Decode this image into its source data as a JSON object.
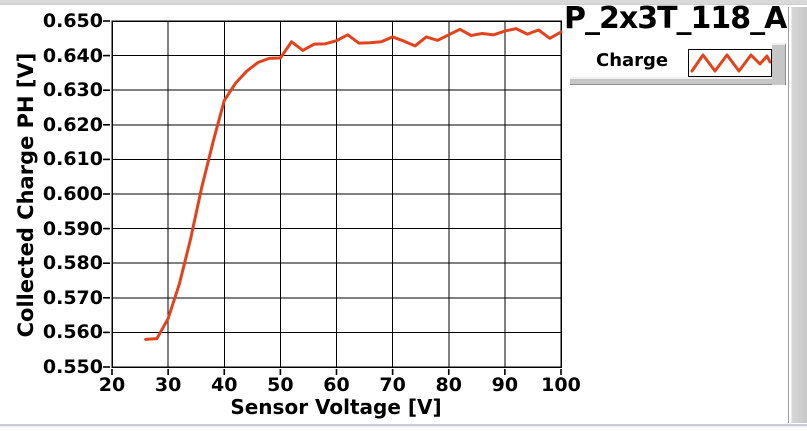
{
  "window": {
    "title": "P_2x3T_118_A"
  },
  "colors": {
    "series": "#e2421c",
    "grid": "#000000",
    "chrome_gray": "#d9d9d9",
    "bottom_edge": "#c6cdd8",
    "plot_background": "#ffffff",
    "text": "#000000"
  },
  "legend": {
    "label": "Charge"
  },
  "chart_data": {
    "type": "line",
    "title": "P_2x3T_118_A",
    "xlabel": "Sensor Voltage [V]",
    "ylabel": "Collected Charge PH [V]",
    "xlim": [
      20,
      100
    ],
    "ylim": [
      0.55,
      0.65
    ],
    "x_ticks": [
      20,
      30,
      40,
      50,
      60,
      70,
      80,
      90,
      100
    ],
    "y_ticks": [
      0.55,
      0.56,
      0.57,
      0.58,
      0.59,
      0.6,
      0.61,
      0.62,
      0.63,
      0.64,
      0.65
    ],
    "grid": true,
    "legend_position": "top-right",
    "series": [
      {
        "name": "Charge",
        "color": "#e2421c",
        "x": [
          26,
          28,
          30,
          32,
          34,
          36,
          38,
          40,
          42,
          44,
          46,
          48,
          50,
          52,
          54,
          56,
          58,
          60,
          62,
          64,
          66,
          68,
          70,
          72,
          74,
          76,
          78,
          80,
          82,
          84,
          86,
          88,
          90,
          92,
          94,
          96,
          98,
          100
        ],
        "y": [
          0.558,
          0.5582,
          0.564,
          0.574,
          0.587,
          0.602,
          0.615,
          0.627,
          0.632,
          0.6355,
          0.638,
          0.6392,
          0.6393,
          0.644,
          0.6415,
          0.6433,
          0.6434,
          0.6443,
          0.646,
          0.6436,
          0.6437,
          0.644,
          0.6454,
          0.6442,
          0.6428,
          0.6454,
          0.6444,
          0.646,
          0.6476,
          0.6458,
          0.6464,
          0.646,
          0.6471,
          0.6478,
          0.6462,
          0.6474,
          0.645,
          0.6468
        ]
      }
    ]
  }
}
